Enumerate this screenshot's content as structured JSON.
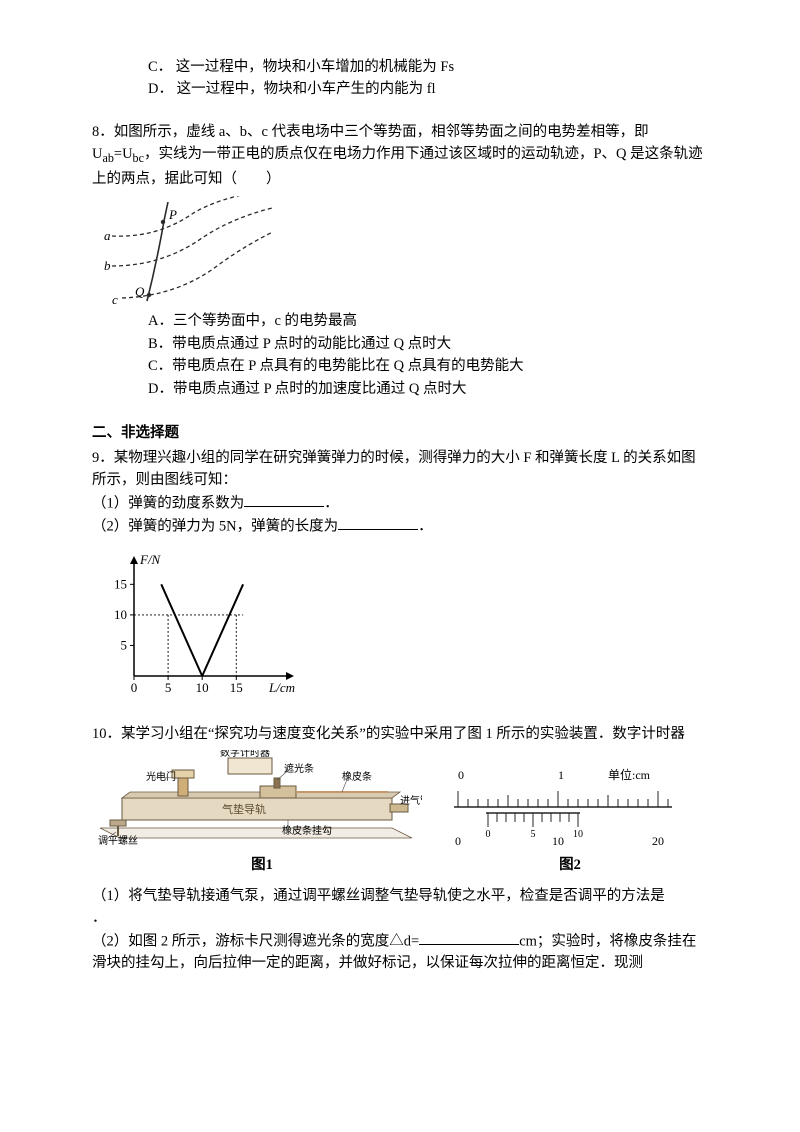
{
  "q7": {
    "optC_label": "C．",
    "optC_text": "这一过程中，物块和小车增加的机械能为 Fs",
    "optD_label": "D．",
    "optD_text": "这一过程中，物块和小车产生的内能为 fl"
  },
  "q8": {
    "num": "8．",
    "stem": "如图所示，虚线 a、b、c 代表电场中三个等势面，相邻等势面之间的电势差相等，即 U",
    "sub1": "ab",
    "eq": "=U",
    "sub2": "bc",
    "stem2": "，实线为一带正电的质点仅在电场力作用下通过该区域时的运动轨迹，P、Q 是这条轨迹上的两点，据此可知（　　）",
    "fig": {
      "labels": {
        "a": "a",
        "b": "b",
        "c": "c",
        "P": "P",
        "Q": "Q"
      },
      "stroke": "#2a2a2a",
      "dash": "4,3",
      "line_width": 1.3
    },
    "optA_label": "A．",
    "optA_text": "三个等势面中，c 的电势最高",
    "optB_label": "B．",
    "optB_text": "带电质点通过 P 点时的动能比通过 Q 点时大",
    "optC_label": "C．",
    "optC_text": "带电质点在 P 点具有的电势能比在 Q 点具有的电势能大",
    "optD_label": "D．",
    "optD_text": "带电质点通过 P 点时的加速度比通过 Q 点时大"
  },
  "section2": "二、非选择题",
  "q9": {
    "num": "9．",
    "stem": "某物理兴趣小组的同学在研究弹簧弹力的时候，测得弹力的大小 F 和弹簧长度 L 的关系如图所示，则由图线可知：",
    "part1_pre": "（1）弹簧的劲度系数为",
    "part1_post": "．",
    "part2_pre": "（2）弹簧的弹力为 5N，弹簧的长度为",
    "part2_post": "．",
    "chart": {
      "type": "line",
      "ylabel": "F/N",
      "xlabel": "L/cm",
      "xticks": [
        0,
        5,
        10,
        15
      ],
      "yticks": [
        5,
        10,
        15
      ],
      "xlim": [
        0,
        22
      ],
      "ylim": [
        0,
        18
      ],
      "series": [
        {
          "points": [
            [
              4,
              15
            ],
            [
              10,
              0
            ]
          ],
          "color": "#000",
          "width": 2
        },
        {
          "points": [
            [
              10,
              0
            ],
            [
              16,
              15
            ]
          ],
          "color": "#000",
          "width": 2
        }
      ],
      "dashed_refs": [
        {
          "from": [
            5,
            10
          ],
          "to": [
            5,
            0
          ]
        },
        {
          "from": [
            0,
            10
          ],
          "to": [
            16,
            10
          ]
        },
        {
          "from": [
            15,
            10
          ],
          "to": [
            15,
            0
          ]
        }
      ],
      "axis_color": "#000",
      "grid": false,
      "font_size": 13
    }
  },
  "q10": {
    "num": "10．",
    "stem": "某学习小组在“探究功与速度变化关系”的实验中采用了图 1 所示的实验装置．数字计时器",
    "apparatus": {
      "labels": {
        "photogate": "光电门",
        "timer": "数字计时器",
        "flag": "遮光条",
        "rubber": "橡皮条",
        "track": "气垫导轨",
        "blower": "进气管",
        "hook": "橡皮条挂勾",
        "screw": "调平螺丝"
      },
      "body_color": "#e6d9c2",
      "outline": "#6b5a42",
      "rubber_color": "#c49a6c"
    },
    "ruler": {
      "major_ticks": [
        0,
        1
      ],
      "unit_label": "单位:cm",
      "main_mm": [
        0,
        10,
        20
      ],
      "vernier_mm": [
        0,
        5,
        10
      ],
      "main_count": 21,
      "vernier_offset_mm": 3,
      "stroke": "#242424"
    },
    "cap1": "图1",
    "cap2": "图2",
    "p1_pre": "（1）将气垫导轨接通气泵，通过调平螺丝调整气垫导轨使之水平，检查是否调平的方法是",
    "p1_post": "．",
    "p2_pre": "（2）如图 2 所示，游标卡尺测得遮光条的宽度△d=",
    "p2_post": "cm；实验时，将橡皮条挂在滑块的挂勾上，向后拉伸一定的距离，并做好标记，以保证每次拉伸的距离恒定．现测"
  }
}
